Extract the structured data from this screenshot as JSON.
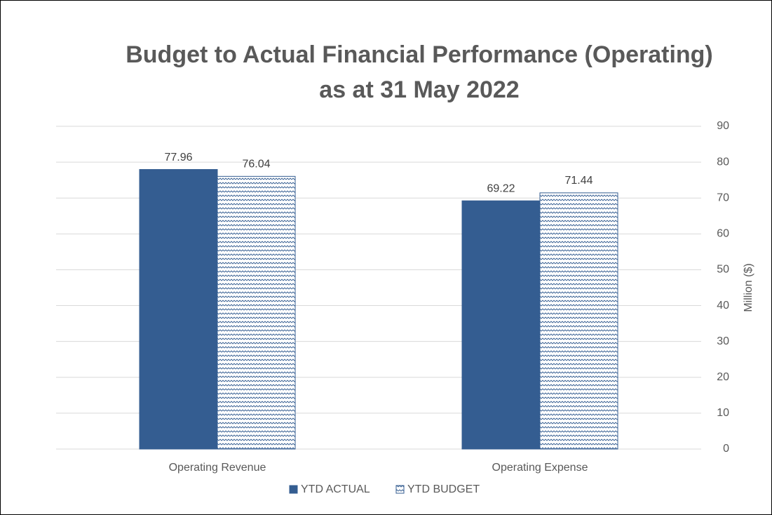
{
  "chart_data": {
    "type": "bar",
    "title": [
      "Budget to Actual Financial Performance (Operating)",
      "as at 31 May 2022"
    ],
    "categories": [
      "Operating Revenue",
      "Operating Expense"
    ],
    "series": [
      {
        "name": "YTD ACTUAL",
        "color": "#345d91",
        "values": [
          77.96,
          69.22
        ]
      },
      {
        "name": "YTD BUDGET",
        "color": "#345d91",
        "hatch": "zigzag",
        "values": [
          76.04,
          71.44
        ]
      }
    ],
    "y_axis_label": "Million ($)",
    "y_axis_side": "right",
    "ylim": [
      0,
      90
    ],
    "yticks": [
      0,
      10,
      20,
      30,
      40,
      50,
      60,
      70,
      80,
      90
    ],
    "grid": true,
    "legend": "bottom"
  }
}
